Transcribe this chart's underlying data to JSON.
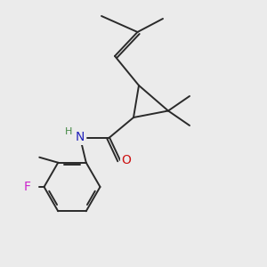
{
  "bg_color": "#ebebeb",
  "bond_color": "#2a2a2a",
  "bond_width": 1.4,
  "atom_colors": {
    "N": "#2222bb",
    "O": "#cc1111",
    "F": "#cc22cc",
    "H": "#448844",
    "C": "#2a2a2a"
  },
  "font_size": 10,
  "xlim": [
    0,
    10
  ],
  "ylim": [
    0,
    10
  ]
}
